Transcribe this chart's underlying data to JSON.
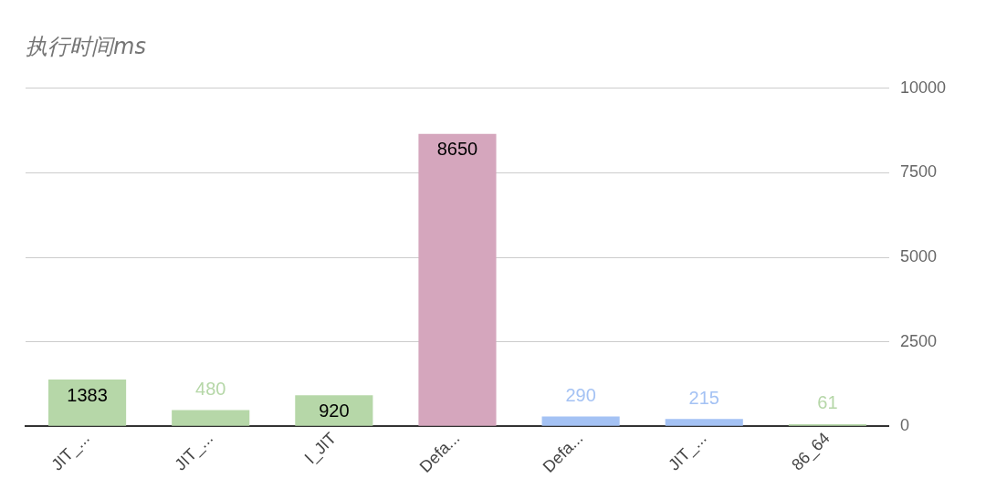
{
  "chart_data": {
    "type": "bar",
    "title": "执行时间ms",
    "categories": [
      "JIT_...",
      "JIT_...",
      "l_JIT",
      "Defa...",
      "Defa...",
      "JIT_...",
      "86_64"
    ],
    "values": [
      1383,
      480,
      920,
      8650,
      290,
      215,
      61
    ],
    "colors": [
      "#b6d7a8",
      "#b6d7a8",
      "#b6d7a8",
      "#d5a6bd",
      "#a4c2f4",
      "#a4c2f4",
      "#b6d7a8"
    ],
    "ylim": [
      0,
      10000
    ],
    "yticks": [
      0,
      2500,
      5000,
      7500,
      10000
    ],
    "grid": "y",
    "legend": false,
    "data_labels": true
  }
}
